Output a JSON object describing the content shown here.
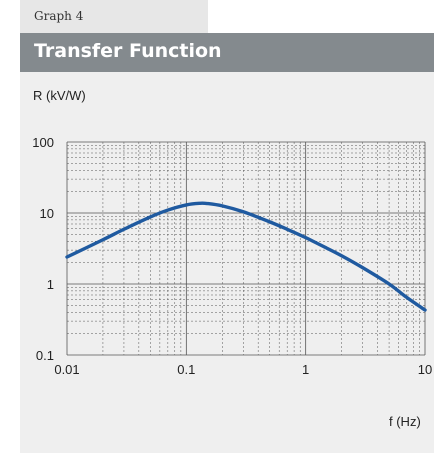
{
  "page": {
    "tab_label": "Graph 4",
    "title": "Transfer Function"
  },
  "colors": {
    "header_bg": "#848a8e",
    "panel_bg": "#efefef",
    "curve": "#1f5aa0",
    "grid": "#555555"
  },
  "chart_data": {
    "type": "line",
    "title": "Transfer Function",
    "xlabel": "f (Hz)",
    "ylabel": "R (kV/W)",
    "x_scale": "log",
    "y_scale": "log",
    "xlim": [
      0.01,
      10
    ],
    "ylim": [
      0.1,
      100
    ],
    "x_ticks": [
      {
        "value": 0.01,
        "label": "0.01"
      },
      {
        "value": 0.1,
        "label": "0.1"
      },
      {
        "value": 1,
        "label": "1"
      },
      {
        "value": 10,
        "label": "10"
      }
    ],
    "y_ticks": [
      {
        "value": 0.1,
        "label": "0.1"
      },
      {
        "value": 1,
        "label": "1"
      },
      {
        "value": 10,
        "label": "10"
      },
      {
        "value": 100,
        "label": "100"
      }
    ],
    "grid": true,
    "series": [
      {
        "x": [
          0.01,
          0.02,
          0.03,
          0.05,
          0.07,
          0.1,
          0.13,
          0.15,
          0.2,
          0.3,
          0.5,
          0.7,
          1,
          1.5,
          2,
          3,
          5,
          7,
          10
        ],
        "y": [
          2.4,
          4.2,
          5.9,
          8.8,
          11.0,
          13.0,
          13.7,
          13.6,
          12.6,
          10.4,
          7.5,
          5.9,
          4.5,
          3.2,
          2.5,
          1.7,
          1.0,
          0.65,
          0.43
        ]
      }
    ]
  }
}
